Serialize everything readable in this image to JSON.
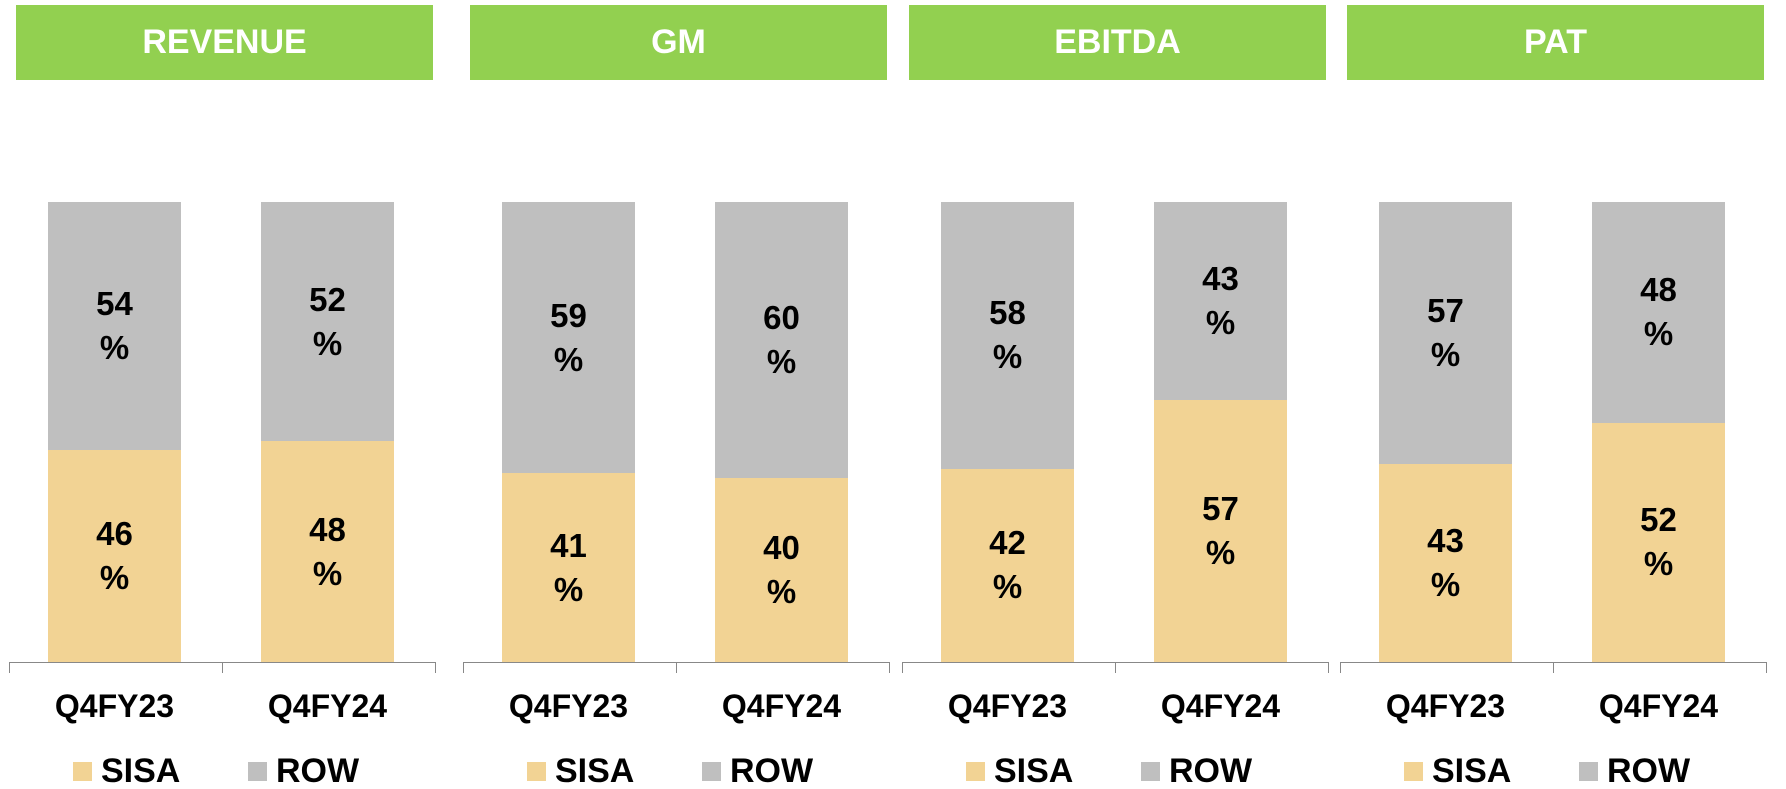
{
  "chart_data": [
    {
      "type": "bar",
      "stacked": true,
      "title": "REVENUE",
      "categories": [
        "Q4FY23",
        "Q4FY24"
      ],
      "ylim": [
        0,
        100
      ],
      "legend": "bottom",
      "series": [
        {
          "name": "SISA",
          "color": "#f2d394",
          "values": [
            46,
            48
          ],
          "value_labels": [
            "46 %",
            "48 %"
          ]
        },
        {
          "name": "ROW",
          "color": "#bfbfbf",
          "values": [
            54,
            52
          ],
          "value_labels": [
            "54 %",
            "52 %"
          ]
        }
      ]
    },
    {
      "type": "bar",
      "stacked": true,
      "title": "GM",
      "categories": [
        "Q4FY23",
        "Q4FY24"
      ],
      "ylim": [
        0,
        100
      ],
      "legend": "bottom",
      "series": [
        {
          "name": "SISA",
          "color": "#f2d394",
          "values": [
            41,
            40
          ],
          "value_labels": [
            "41 %",
            "40 %"
          ]
        },
        {
          "name": "ROW",
          "color": "#bfbfbf",
          "values": [
            59,
            60
          ],
          "value_labels": [
            "59 %",
            "60 %"
          ]
        }
      ]
    },
    {
      "type": "bar",
      "stacked": true,
      "title": "EBITDA",
      "categories": [
        "Q4FY23",
        "Q4FY24"
      ],
      "ylim": [
        0,
        100
      ],
      "legend": "bottom",
      "series": [
        {
          "name": "SISA",
          "color": "#f2d394",
          "values": [
            42,
            57
          ],
          "value_labels": [
            "42 %",
            "57 %"
          ]
        },
        {
          "name": "ROW",
          "color": "#bfbfbf",
          "values": [
            58,
            43
          ],
          "value_labels": [
            "58 %",
            "43 %"
          ]
        }
      ]
    },
    {
      "type": "bar",
      "stacked": true,
      "title": "PAT",
      "categories": [
        "Q4FY23",
        "Q4FY24"
      ],
      "ylim": [
        0,
        100
      ],
      "legend": "bottom",
      "series": [
        {
          "name": "SISA",
          "color": "#f2d394",
          "values": [
            43,
            52
          ],
          "value_labels": [
            "43 %",
            "52 %"
          ]
        },
        {
          "name": "ROW",
          "color": "#bfbfbf",
          "values": [
            57,
            48
          ],
          "value_labels": [
            "57 %",
            "48 %"
          ]
        }
      ]
    }
  ]
}
